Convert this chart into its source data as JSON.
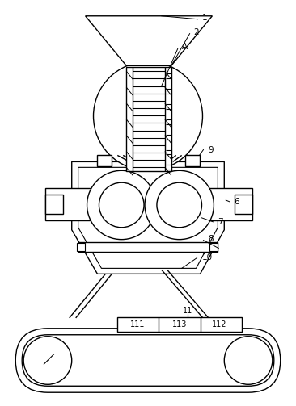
{
  "bg_color": "#ffffff",
  "line_color": "#000000",
  "fig_width": 3.66,
  "fig_height": 5.03,
  "dpi": 100
}
